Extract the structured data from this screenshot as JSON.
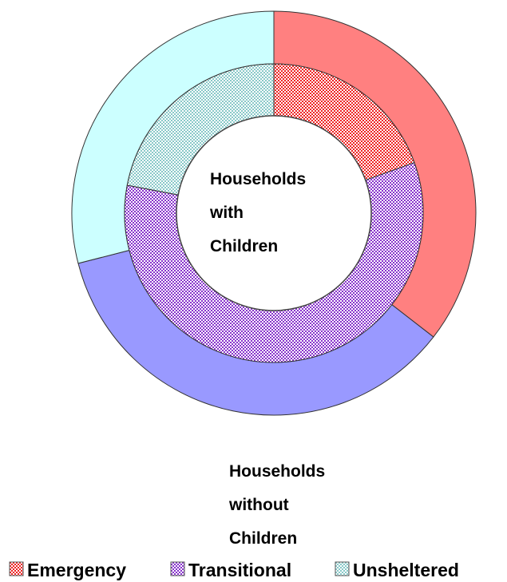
{
  "chart_data": {
    "type": "doughnut",
    "rings": [
      {
        "name": "Households with Children",
        "label_lines": [
          "Households",
          "with",
          "Children"
        ],
        "position": "inner",
        "values": [
          19.5,
          58.5,
          22.0
        ]
      },
      {
        "name": "Households without Children",
        "label_lines": [
          "Households",
          "without",
          "Children"
        ],
        "position": "outer",
        "values": [
          35.5,
          35.5,
          29.0
        ]
      }
    ],
    "categories": [
      "Emergency",
      "Transitional",
      "Unsheltered"
    ],
    "colors": {
      "Emergency": "#ff8080",
      "Transitional": "#9999ff",
      "Unsheltered": "#ccffff",
      "Emergency_pattern": "#ee2222",
      "Transitional_pattern": "#8833cc",
      "Unsheltered_pattern": "#88c8c8"
    },
    "legend": {
      "position": "bottom",
      "entries": [
        "Emergency",
        "Transitional",
        "Unsheltered"
      ]
    }
  }
}
